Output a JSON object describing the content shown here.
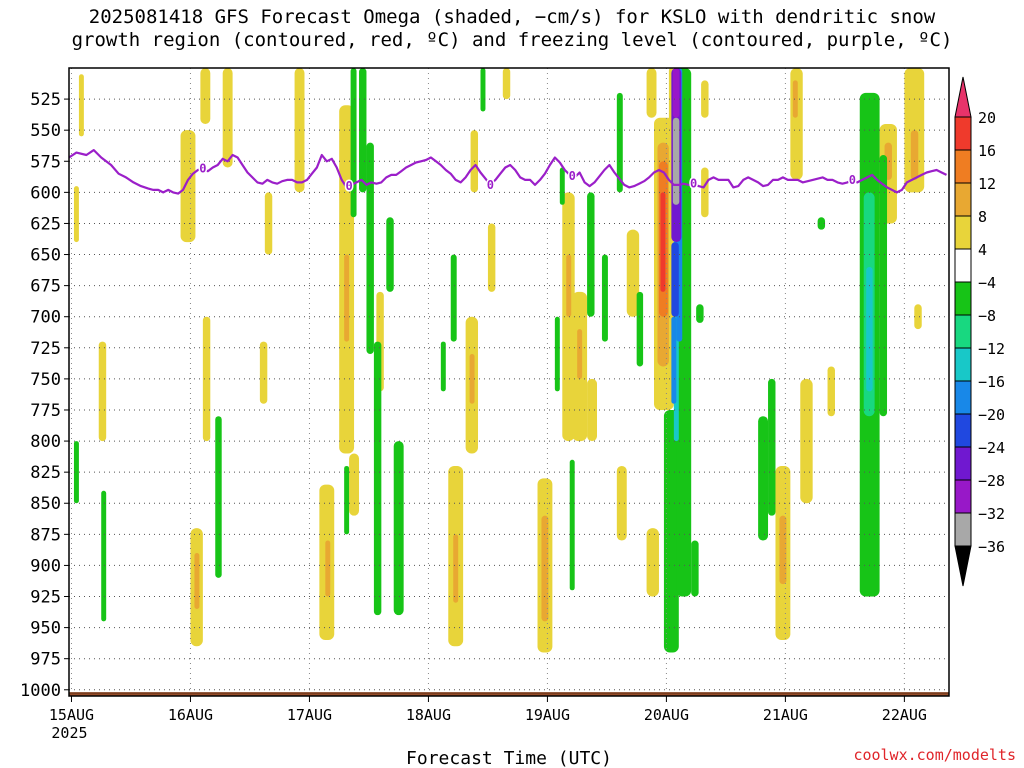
{
  "title": {
    "line1": "2025081418 GFS Forecast Omega (shaded, −cm/s) for KSLO with dendritic snow",
    "line2": "growth region (contoured, red, ºC) and freezing level (contoured, purple, ºC)"
  },
  "footer_url": "coolwx.com/modelts",
  "chart_data": {
    "type": "heatmap",
    "title": "2025081418 GFS Forecast Omega (shaded, −cm/s) for KSLO with dendritic snow growth region (contoured, red, ºC) and freezing level (contoured, purple, ºC)",
    "xlabel": "Forecast Time (UTC)",
    "ylabel": "",
    "x_range_hours_from_15AUG00": [
      -0.5,
      177
    ],
    "y_range_hPa": [
      500,
      1005
    ],
    "y_ticks": [
      525,
      550,
      575,
      600,
      625,
      650,
      675,
      700,
      725,
      750,
      775,
      800,
      825,
      850,
      875,
      900,
      925,
      950,
      975,
      1000
    ],
    "x_ticks": [
      {
        "label": "15AUG",
        "sub": "2025",
        "hour": 0
      },
      {
        "label": "16AUG",
        "sub": "",
        "hour": 24
      },
      {
        "label": "17AUG",
        "sub": "",
        "hour": 48
      },
      {
        "label": "18AUG",
        "sub": "",
        "hour": 72
      },
      {
        "label": "19AUG",
        "sub": "",
        "hour": 96
      },
      {
        "label": "20AUG",
        "sub": "",
        "hour": 120
      },
      {
        "label": "21AUG",
        "sub": "",
        "hour": 144
      },
      {
        "label": "22AUG",
        "sub": "",
        "hour": 168
      }
    ],
    "grid": true,
    "colorbar": {
      "labels": [
        "20",
        "16",
        "12",
        "8",
        "4",
        "−4",
        "−8",
        "−12",
        "−16",
        "−20",
        "−24",
        "−28",
        "−32",
        "−36"
      ],
      "colors": [
        "#e8336a",
        "#ef3a2c",
        "#ef7d22",
        "#e8a832",
        "#e8d43a",
        "#ffffff",
        "#17c417",
        "#18d880",
        "#18c8c8",
        "#1888e8",
        "#2048e0",
        "#7018d0",
        "#9818c8",
        "#a8a8a8",
        "#000000"
      ]
    },
    "palette": {
      "y4": "#e8d43a",
      "y8": "#e8a832",
      "o12": "#ef7d22",
      "r16": "#ef3a2c",
      "g4": "#17c417",
      "g8": "#18d880",
      "c12": "#18c8c8",
      "b16": "#1888e8",
      "b20": "#2048e0",
      "p24": "#7018d0",
      "p28": "#9818c8",
      "gy": "#a8a8a8"
    },
    "omega_shading": [
      {
        "c": "y4",
        "h0": 1.5,
        "h1": 2.5,
        "p0": 505,
        "p1": 555
      },
      {
        "c": "y4",
        "h0": 0.5,
        "h1": 1.5,
        "p0": 595,
        "p1": 640
      },
      {
        "c": "y4",
        "h0": 5.5,
        "h1": 7,
        "p0": 720,
        "p1": 800
      },
      {
        "c": "y4",
        "h0": 22,
        "h1": 25,
        "p0": 550,
        "p1": 640
      },
      {
        "c": "y4",
        "h0": 26,
        "h1": 28,
        "p0": 500,
        "p1": 545
      },
      {
        "c": "y4",
        "h0": 30.5,
        "h1": 32.5,
        "p0": 500,
        "p1": 580
      },
      {
        "c": "y4",
        "h0": 24,
        "h1": 26.5,
        "p0": 870,
        "p1": 965
      },
      {
        "c": "y8",
        "h0": 24.8,
        "h1": 25.8,
        "p0": 890,
        "p1": 935
      },
      {
        "c": "y4",
        "h0": 26.5,
        "h1": 28,
        "p0": 700,
        "p1": 800
      },
      {
        "c": "y4",
        "h0": 39,
        "h1": 40.5,
        "p0": 600,
        "p1": 650
      },
      {
        "c": "y4",
        "h0": 38,
        "h1": 39.5,
        "p0": 720,
        "p1": 770
      },
      {
        "c": "y4",
        "h0": 45,
        "h1": 47,
        "p0": 500,
        "p1": 600
      },
      {
        "c": "y4",
        "h0": 50,
        "h1": 53,
        "p0": 835,
        "p1": 960
      },
      {
        "c": "y8",
        "h0": 51.2,
        "h1": 52.2,
        "p0": 880,
        "p1": 925
      },
      {
        "c": "y4",
        "h0": 54,
        "h1": 57,
        "p0": 530,
        "p1": 810
      },
      {
        "c": "y8",
        "h0": 55,
        "h1": 56,
        "p0": 650,
        "p1": 720
      },
      {
        "c": "y4",
        "h0": 56,
        "h1": 58,
        "p0": 810,
        "p1": 860
      },
      {
        "c": "y4",
        "h0": 61.5,
        "h1": 63,
        "p0": 680,
        "p1": 760
      },
      {
        "c": "y4",
        "h0": 76,
        "h1": 79,
        "p0": 820,
        "p1": 965
      },
      {
        "c": "y8",
        "h0": 77,
        "h1": 78,
        "p0": 875,
        "p1": 930
      },
      {
        "c": "y4",
        "h0": 79.5,
        "h1": 82,
        "p0": 700,
        "p1": 810
      },
      {
        "c": "y8",
        "h0": 80.3,
        "h1": 81.3,
        "p0": 730,
        "p1": 770
      },
      {
        "c": "y4",
        "h0": 80.5,
        "h1": 82,
        "p0": 550,
        "p1": 600
      },
      {
        "c": "y4",
        "h0": 84,
        "h1": 85.5,
        "p0": 625,
        "p1": 680
      },
      {
        "c": "y4",
        "h0": 87,
        "h1": 88.5,
        "p0": 500,
        "p1": 525
      },
      {
        "c": "y4",
        "h0": 99,
        "h1": 101.5,
        "p0": 600,
        "p1": 800
      },
      {
        "c": "y8",
        "h0": 99.8,
        "h1": 100.8,
        "p0": 650,
        "p1": 700
      },
      {
        "c": "y4",
        "h0": 101,
        "h1": 104,
        "p0": 680,
        "p1": 800
      },
      {
        "c": "y8",
        "h0": 102,
        "h1": 103,
        "p0": 710,
        "p1": 750
      },
      {
        "c": "y4",
        "h0": 94,
        "h1": 97,
        "p0": 830,
        "p1": 970
      },
      {
        "c": "y8",
        "h0": 94.8,
        "h1": 96.2,
        "p0": 860,
        "p1": 945
      },
      {
        "c": "y4",
        "h0": 104,
        "h1": 106,
        "p0": 750,
        "p1": 800
      },
      {
        "c": "y4",
        "h0": 112,
        "h1": 114.5,
        "p0": 630,
        "p1": 700
      },
      {
        "c": "y4",
        "h0": 110,
        "h1": 112,
        "p0": 820,
        "p1": 880
      },
      {
        "c": "y4",
        "h0": 116,
        "h1": 118.5,
        "p0": 870,
        "p1": 925
      },
      {
        "c": "y4",
        "h0": 116,
        "h1": 118,
        "p0": 500,
        "p1": 540
      },
      {
        "c": "y4",
        "h0": 117.5,
        "h1": 121.5,
        "p0": 540,
        "p1": 775
      },
      {
        "c": "y8",
        "h0": 118.2,
        "h1": 120.5,
        "p0": 560,
        "p1": 740
      },
      {
        "c": "o12",
        "h0": 118.5,
        "h1": 120.3,
        "p0": 575,
        "p1": 700
      },
      {
        "c": "r16",
        "h0": 118.8,
        "h1": 119.8,
        "p0": 600,
        "p1": 680
      },
      {
        "c": "y4",
        "h0": 120.5,
        "h1": 121.5,
        "p0": 500,
        "p1": 600
      },
      {
        "c": "y4",
        "h0": 127,
        "h1": 128.5,
        "p0": 510,
        "p1": 540
      },
      {
        "c": "y4",
        "h0": 127,
        "h1": 128.5,
        "p0": 580,
        "p1": 620
      },
      {
        "c": "y4",
        "h0": 147,
        "h1": 149.5,
        "p0": 750,
        "p1": 850
      },
      {
        "c": "y4",
        "h0": 142,
        "h1": 145,
        "p0": 820,
        "p1": 960
      },
      {
        "c": "y8",
        "h0": 142.8,
        "h1": 144.2,
        "p0": 860,
        "p1": 915
      },
      {
        "c": "y4",
        "h0": 145,
        "h1": 147.5,
        "p0": 500,
        "p1": 590
      },
      {
        "c": "y8",
        "h0": 145.5,
        "h1": 146.5,
        "p0": 510,
        "p1": 540
      },
      {
        "c": "y4",
        "h0": 152.5,
        "h1": 154,
        "p0": 740,
        "p1": 780
      },
      {
        "c": "y4",
        "h0": 163,
        "h1": 166.5,
        "p0": 545,
        "p1": 625
      },
      {
        "c": "y8",
        "h0": 164,
        "h1": 165.5,
        "p0": 560,
        "p1": 590
      },
      {
        "c": "y4",
        "h0": 168,
        "h1": 172,
        "p0": 500,
        "p1": 600
      },
      {
        "c": "y8",
        "h0": 169.3,
        "h1": 170.8,
        "p0": 550,
        "p1": 590
      },
      {
        "c": "y4",
        "h0": 170,
        "h1": 171.5,
        "p0": 690,
        "p1": 710
      },
      {
        "c": "g4",
        "h0": 0.5,
        "h1": 1.5,
        "p0": 800,
        "p1": 850
      },
      {
        "c": "g4",
        "h0": 6,
        "h1": 7,
        "p0": 840,
        "p1": 945
      },
      {
        "c": "g4",
        "h0": 29,
        "h1": 30.3,
        "p0": 780,
        "p1": 910
      },
      {
        "c": "g4",
        "h0": 56.3,
        "h1": 57.5,
        "p0": 500,
        "p1": 620
      },
      {
        "c": "g4",
        "h0": 58,
        "h1": 59.5,
        "p0": 500,
        "p1": 600
      },
      {
        "c": "g4",
        "h0": 59.5,
        "h1": 61,
        "p0": 560,
        "p1": 730
      },
      {
        "c": "g4",
        "h0": 61,
        "h1": 62.5,
        "p0": 720,
        "p1": 940
      },
      {
        "c": "g4",
        "h0": 63.5,
        "h1": 65,
        "p0": 620,
        "p1": 680
      },
      {
        "c": "g4",
        "h0": 65,
        "h1": 67,
        "p0": 800,
        "p1": 940
      },
      {
        "c": "g4",
        "h0": 55,
        "h1": 56,
        "p0": 820,
        "p1": 875
      },
      {
        "c": "g4",
        "h0": 74.5,
        "h1": 75.5,
        "p0": 720,
        "p1": 760
      },
      {
        "c": "g4",
        "h0": 76.5,
        "h1": 77.7,
        "p0": 650,
        "p1": 720
      },
      {
        "c": "g4",
        "h0": 82.5,
        "h1": 83.5,
        "p0": 500,
        "p1": 535
      },
      {
        "c": "g4",
        "h0": 97.5,
        "h1": 98.5,
        "p0": 700,
        "p1": 760
      },
      {
        "c": "g4",
        "h0": 98.5,
        "h1": 99.5,
        "p0": 580,
        "p1": 610
      },
      {
        "c": "g4",
        "h0": 100.5,
        "h1": 101.5,
        "p0": 815,
        "p1": 920
      },
      {
        "c": "g4",
        "h0": 104,
        "h1": 105.5,
        "p0": 600,
        "p1": 700
      },
      {
        "c": "g4",
        "h0": 107,
        "h1": 108.2,
        "p0": 650,
        "p1": 720
      },
      {
        "c": "g4",
        "h0": 110,
        "h1": 111.2,
        "p0": 520,
        "p1": 600
      },
      {
        "c": "g4",
        "h0": 114,
        "h1": 115.3,
        "p0": 680,
        "p1": 740
      },
      {
        "c": "g4",
        "h0": 119.5,
        "h1": 122.5,
        "p0": 775,
        "p1": 970
      },
      {
        "c": "g4",
        "h0": 122,
        "h1": 125,
        "p0": 500,
        "p1": 925
      },
      {
        "c": "g4",
        "h0": 125,
        "h1": 126.5,
        "p0": 880,
        "p1": 925
      },
      {
        "c": "g4",
        "h0": 126,
        "h1": 127.5,
        "p0": 690,
        "p1": 705
      },
      {
        "c": "g4",
        "h0": 138.5,
        "h1": 140.5,
        "p0": 780,
        "p1": 880
      },
      {
        "c": "g4",
        "h0": 140.5,
        "h1": 142,
        "p0": 750,
        "p1": 860
      },
      {
        "c": "g4",
        "h0": 150.5,
        "h1": 152,
        "p0": 620,
        "p1": 630
      },
      {
        "c": "g4",
        "h0": 159,
        "h1": 163,
        "p0": 520,
        "p1": 925
      },
      {
        "c": "g4",
        "h0": 163,
        "h1": 164.5,
        "p0": 570,
        "p1": 780
      },
      {
        "c": "g8",
        "h0": 159.8,
        "h1": 162,
        "p0": 600,
        "p1": 780
      },
      {
        "c": "c12",
        "h0": 160.3,
        "h1": 161.6,
        "p0": 660,
        "p1": 760
      },
      {
        "c": "c12",
        "h0": 121.5,
        "h1": 122.5,
        "p0": 540,
        "p1": 800
      },
      {
        "c": "b16",
        "h0": 122,
        "h1": 123.2,
        "p0": 500,
        "p1": 720
      },
      {
        "c": "b16",
        "h0": 121,
        "h1": 122,
        "p0": 700,
        "p1": 770
      },
      {
        "c": "b20",
        "h0": 121,
        "h1": 122.5,
        "p0": 640,
        "p1": 700
      },
      {
        "c": "p24",
        "h0": 121,
        "h1": 123,
        "p0": 500,
        "p1": 640
      },
      {
        "c": "p28",
        "h0": 121.3,
        "h1": 122.6,
        "p0": 500,
        "p1": 540
      },
      {
        "c": "gy",
        "h0": 121.3,
        "h1": 122.6,
        "p0": 540,
        "p1": 610
      }
    ],
    "freezing_level_label": "0",
    "freezing_level": {
      "hour": [
        -0.5,
        1,
        3,
        4.5,
        6,
        8,
        9.5,
        11,
        12.5,
        14,
        15.5,
        16.5,
        17.5,
        18.5,
        19.5,
        20.5,
        21.5,
        22.5,
        23.5,
        24.5,
        25.5,
        26.5,
        27.5,
        28.5,
        29.5,
        30.5,
        31.5,
        32.5,
        33.5,
        34.5,
        35.5,
        36.5,
        37.5,
        38.5,
        39.5,
        40.5,
        41.5,
        42.5,
        43.5,
        44.5,
        45.5,
        46.5,
        47.5,
        48.5,
        49.5,
        50.5,
        51.5,
        52.5,
        53.5,
        54.5,
        55.5,
        56.5,
        57.5,
        58.5,
        59.5,
        60.5,
        61.5,
        62.5,
        63.5,
        64.5,
        65.5,
        66.5,
        67.5,
        68.5,
        69.5,
        70.5,
        71.5,
        72.5,
        73.5,
        74.5,
        75.5,
        76.5,
        77.5,
        78.5,
        79.5,
        80.5,
        81.5,
        82.5,
        83.5,
        84.5,
        85.5,
        86.5,
        87.5,
        88.5,
        89.5,
        90.5,
        91.5,
        92.5,
        93.5,
        94.5,
        95.5,
        96.5,
        97.5,
        98.5,
        99.5,
        100.5,
        101.5,
        102.5,
        103.5,
        104.5,
        105.5,
        106.5,
        107.5,
        108.5,
        109.5,
        110.5,
        111.5,
        112.5,
        113.5,
        114.5,
        115.5,
        116.5,
        117.5,
        118.5,
        119.5,
        120.5,
        121.5,
        122.5,
        123.5,
        124.5,
        125.5,
        126.5,
        127.5,
        128.5,
        129.5,
        130.5,
        131.5,
        132.5,
        133.5,
        134.5,
        135.5,
        136.5,
        137.5,
        138.5,
        139.5,
        140.5,
        141.5,
        142.5,
        143.5,
        144.5,
        145.5,
        146.5,
        147.5,
        148.5,
        149.5,
        150.5,
        151.5,
        152.5,
        153.5,
        154.5,
        155.5,
        156.5,
        157.5,
        158.5,
        159.5,
        160.5,
        161.5,
        162.5,
        163.5,
        164.5,
        165.5,
        166.5,
        167.5,
        168.5,
        169.5,
        170.5,
        171.5,
        172.5,
        173.5,
        174.5,
        175.5,
        176.5
      ],
      "pressure": [
        572,
        568,
        570,
        566,
        572,
        578,
        585,
        588,
        592,
        595,
        597,
        598,
        598,
        600,
        598,
        600,
        601,
        598,
        590,
        585,
        582,
        581,
        583,
        580,
        578,
        573,
        575,
        570,
        572,
        578,
        584,
        588,
        592,
        593,
        590,
        592,
        593,
        591,
        590,
        590,
        592,
        592,
        590,
        585,
        580,
        570,
        575,
        573,
        580,
        590,
        596,
        594,
        592,
        590,
        594,
        592,
        593,
        592,
        588,
        586,
        586,
        583,
        580,
        578,
        576,
        575,
        574,
        572,
        575,
        578,
        582,
        585,
        590,
        592,
        588,
        582,
        578,
        584,
        589,
        594,
        590,
        585,
        580,
        578,
        582,
        588,
        590,
        590,
        594,
        590,
        585,
        578,
        572,
        576,
        582,
        586,
        588,
        584,
        592,
        595,
        592,
        587,
        582,
        578,
        584,
        589,
        594,
        596,
        595,
        593,
        591,
        588,
        584,
        582,
        584,
        590,
        594,
        594,
        593,
        594,
        593,
        595,
        596,
        590,
        588,
        590,
        590,
        590,
        596,
        595,
        590,
        588,
        590,
        592,
        595,
        594,
        590,
        590,
        588,
        590,
        590,
        590,
        592,
        591,
        590,
        589,
        588,
        590,
        590,
        592,
        593,
        592,
        590,
        592,
        590,
        588,
        586,
        590,
        593,
        596,
        598,
        600,
        598,
        592,
        590,
        588,
        586,
        584,
        583,
        582,
        584,
        586,
        586
      ],
      "label_hours": [
        26.5,
        56,
        84.5,
        101,
        125.5,
        157.5
      ]
    }
  }
}
